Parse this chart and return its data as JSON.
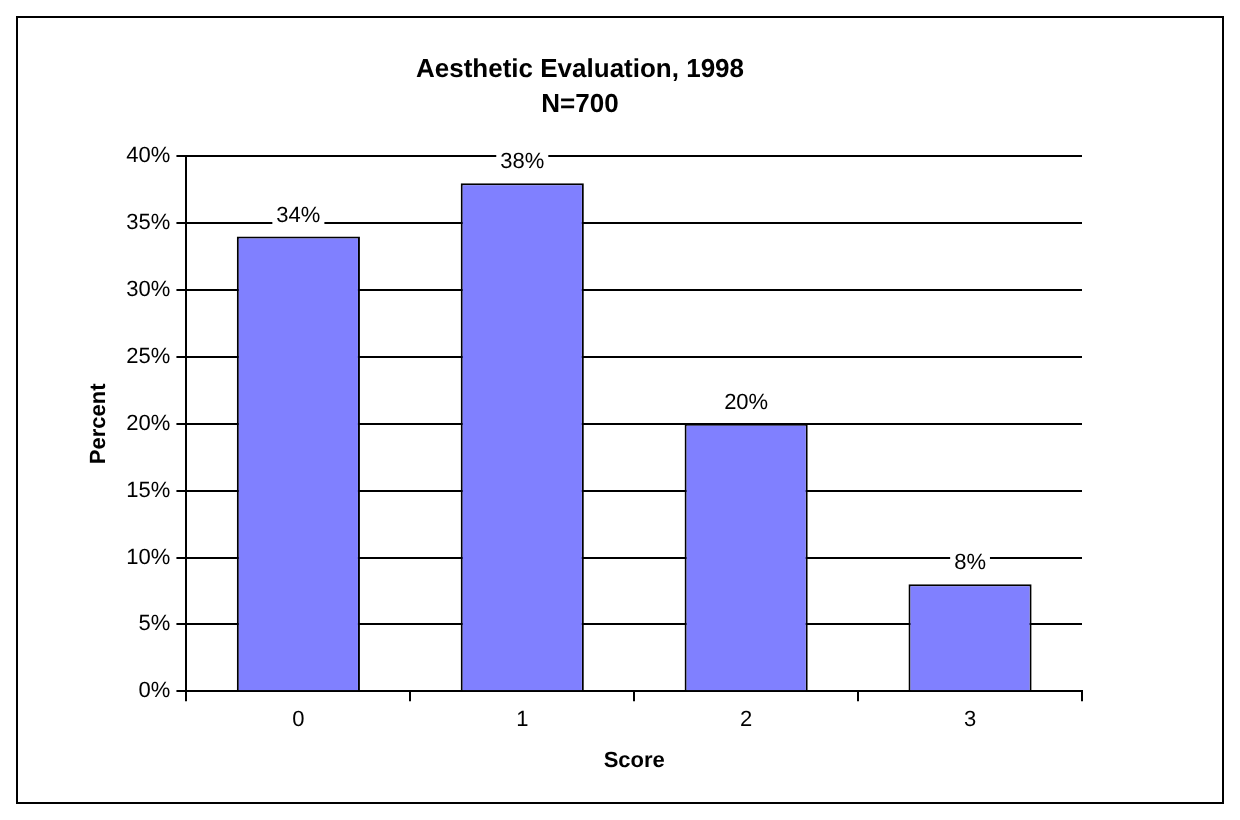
{
  "chart_data": {
    "type": "bar",
    "title": "Aesthetic Evaluation, 1998",
    "subtitle": "N=700",
    "xlabel": "Score",
    "ylabel": "Percent",
    "categories": [
      "0",
      "1",
      "2",
      "3"
    ],
    "values": [
      34,
      38,
      20,
      8
    ],
    "value_labels": [
      "34%",
      "38%",
      "20%",
      "8%"
    ],
    "color": "#8080ff",
    "ylim": [
      0,
      40
    ],
    "yticks": [
      {
        "value": 0,
        "label": "0%"
      },
      {
        "value": 5,
        "label": "5%"
      },
      {
        "value": 10,
        "label": "10%"
      },
      {
        "value": 15,
        "label": "15%"
      },
      {
        "value": 20,
        "label": "20%"
      },
      {
        "value": 25,
        "label": "25%"
      },
      {
        "value": 30,
        "label": "30%"
      },
      {
        "value": 35,
        "label": "35%"
      },
      {
        "value": 40,
        "label": "40%"
      }
    ],
    "grid": "y",
    "legend": false
  }
}
